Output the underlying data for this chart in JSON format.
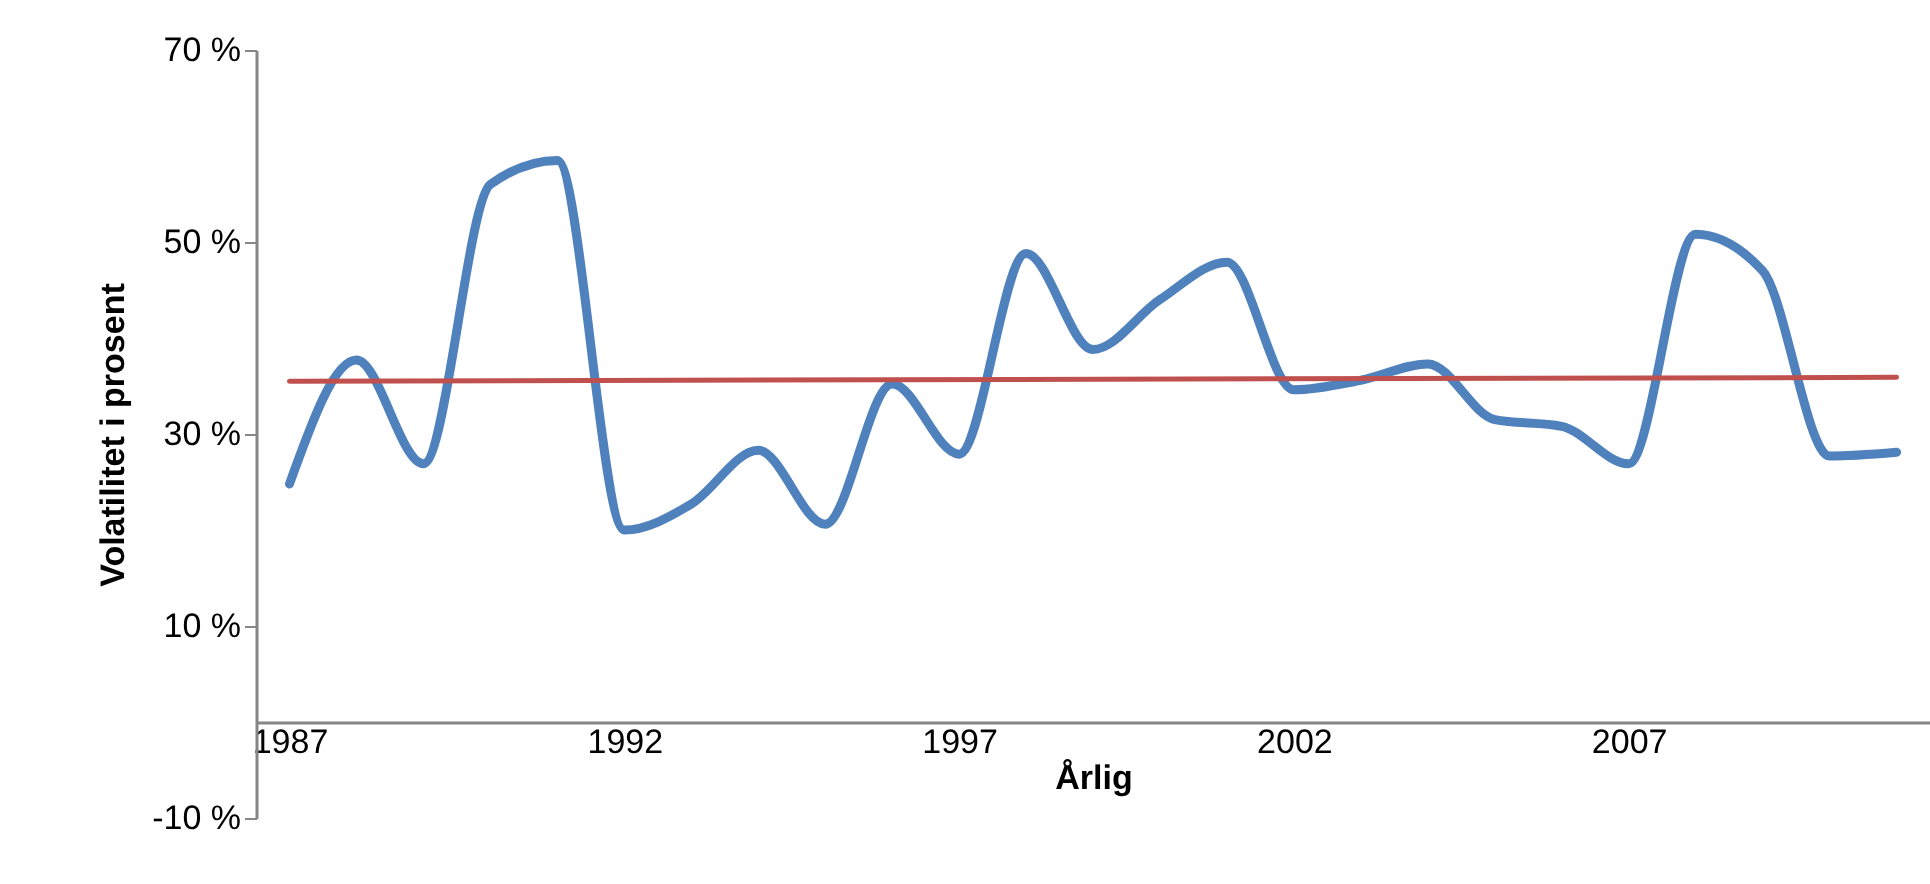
{
  "chart_data": {
    "type": "line",
    "xlabel": "Årlig",
    "ylabel": "Volatilitet i prosent",
    "categories": [
      "1987",
      null,
      null,
      null,
      null,
      "1992",
      null,
      null,
      null,
      null,
      "1997",
      null,
      null,
      null,
      null,
      "2002",
      null,
      null,
      null,
      null,
      "2007",
      null,
      null,
      null,
      null
    ],
    "series": [
      {
        "color": "#4f81bd",
        "values": [
          24.8,
          37.7,
          26.9,
          56,
          58.5,
          20,
          22.7,
          28.3,
          20.6,
          35.2,
          27.9,
          48.8,
          38.8,
          44,
          47.9,
          34.6,
          35.6,
          37.3,
          31.5,
          30.8,
          26.9,
          50.8,
          47,
          27.7,
          28.1
        ]
      },
      {
        "color": "#c0504d",
        "values": [
          35.5,
          null,
          null,
          null,
          null,
          null,
          null,
          null,
          null,
          null,
          null,
          null,
          null,
          null,
          null,
          null,
          null,
          null,
          null,
          null,
          null,
          null,
          null,
          null,
          35.9
        ]
      }
    ],
    "ylim": [
      -10,
      70
    ],
    "yticks": [
      {
        "value": -10,
        "label": "-10 %"
      },
      {
        "value": 10,
        "label": "10 %"
      },
      {
        "value": 30,
        "label": "30 %"
      },
      {
        "value": 50,
        "label": "50 %"
      },
      {
        "value": 70,
        "label": "70 %"
      }
    ],
    "grid": false,
    "legend": false,
    "marker": "none",
    "line_style": "solid"
  }
}
